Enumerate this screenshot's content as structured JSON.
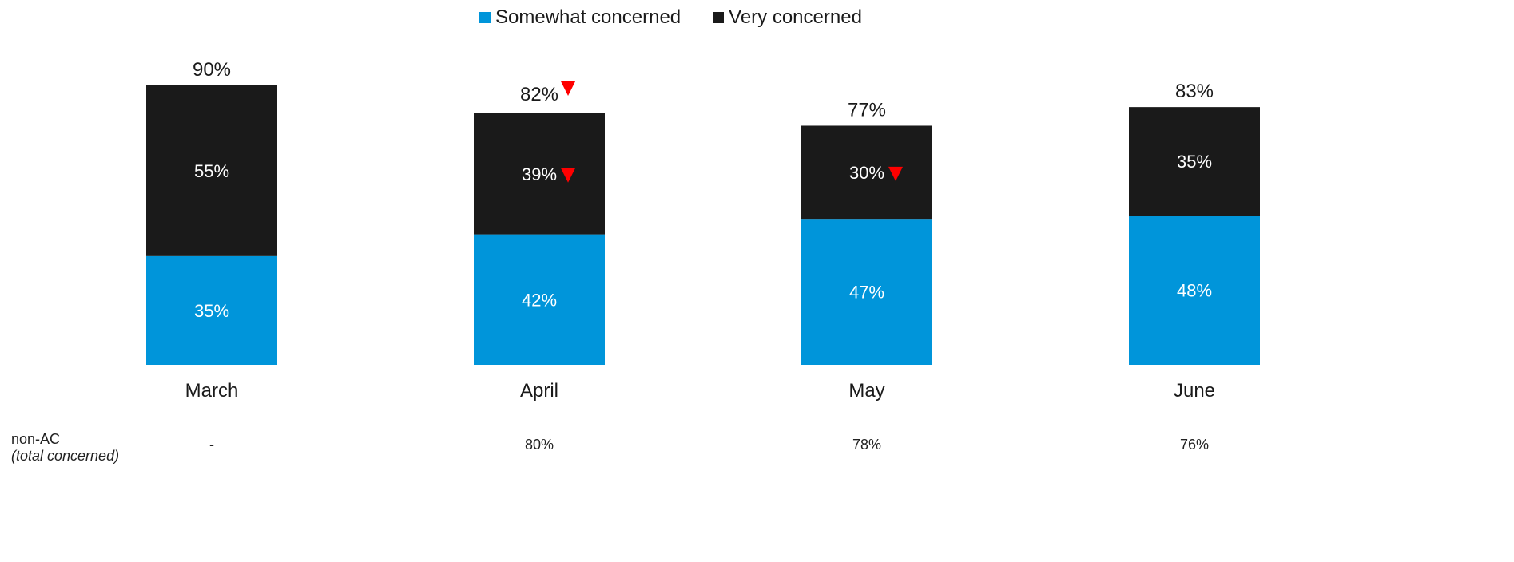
{
  "chart_data": {
    "type": "bar",
    "stacked": true,
    "categories": [
      "March",
      "April",
      "May",
      "June"
    ],
    "series": [
      {
        "name": "Somewhat concerned",
        "color": "#0095DA",
        "values": [
          35,
          42,
          47,
          48
        ],
        "labels": [
          "35%",
          "42%",
          "47%",
          "48%"
        ]
      },
      {
        "name": "Very concerned",
        "color": "#1A1A1A",
        "values": [
          55,
          39,
          30,
          35
        ],
        "labels": [
          "55%",
          "39%",
          "30%",
          "35%"
        ],
        "decrease_flags": [
          false,
          true,
          true,
          false
        ]
      }
    ],
    "totals": [
      90,
      82,
      77,
      83
    ],
    "total_labels": [
      "90%",
      "82%",
      "77%",
      "83%"
    ],
    "total_decrease_flags": [
      false,
      true,
      false,
      false
    ],
    "decrease_marker_color": "#FF0000",
    "ylim": [
      0,
      100
    ],
    "legend": "top-center",
    "grid": false,
    "title": "",
    "xlabel": "",
    "ylabel": ""
  },
  "non_ac": {
    "label": "non-AC",
    "sublabel": "(total concerned)",
    "values": [
      "-",
      "80%",
      "78%",
      "76%"
    ]
  }
}
